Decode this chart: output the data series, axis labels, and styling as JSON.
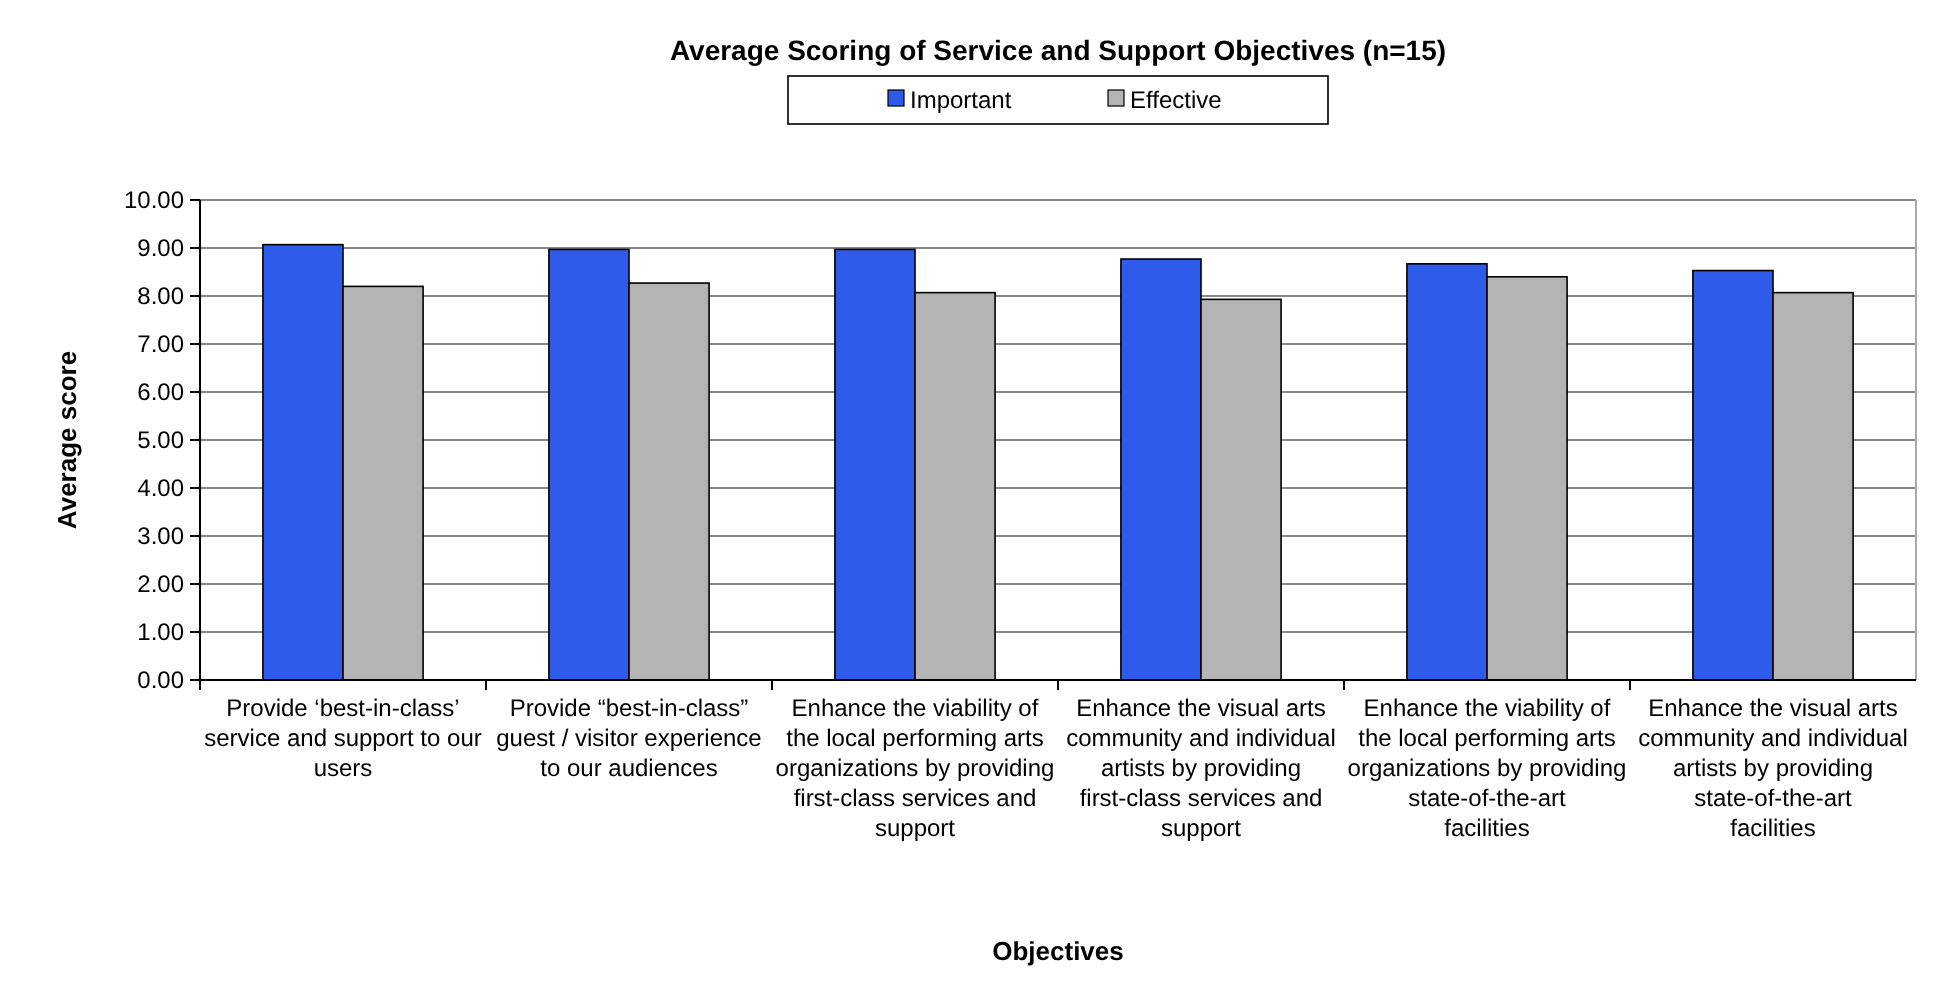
{
  "chart_data": {
    "type": "bar",
    "title": "Average Scoring of Service and Support Objectives (n=15)",
    "xlabel": "Objectives",
    "ylabel": "Average score",
    "categories": [
      "Provide ‘best-in-class’ service and support to our users",
      "Provide “best-in-class” guest / visitor experience to our audiences",
      "Enhance the viability of the local performing arts organizations by providing first-class services and support",
      "Enhance the visual arts community and individual artists by providing first-class services and support",
      "Enhance the viability of the local performing arts organizations by providing state-of-the-art facilities",
      "Enhance the visual arts community and individual artists by providing state-of-the-art facilities"
    ],
    "series": [
      {
        "name": "Important",
        "color": "#2f5bea",
        "values": [
          9.07,
          8.97,
          8.97,
          8.77,
          8.67,
          8.53
        ]
      },
      {
        "name": "Effective",
        "color": "#b4b4b4",
        "values": [
          8.2,
          8.27,
          8.07,
          7.93,
          8.4,
          8.07
        ]
      }
    ],
    "ylim": [
      0,
      10
    ],
    "yticks": [
      {
        "value": 0,
        "label": "0.00"
      },
      {
        "value": 1,
        "label": "1.00"
      },
      {
        "value": 2,
        "label": "2.00"
      },
      {
        "value": 3,
        "label": "3.00"
      },
      {
        "value": 4,
        "label": "4.00"
      },
      {
        "value": 5,
        "label": "5.00"
      },
      {
        "value": 6,
        "label": "6.00"
      },
      {
        "value": 7,
        "label": "7.00"
      },
      {
        "value": 8,
        "label": "8.00"
      },
      {
        "value": 9,
        "label": "9.00"
      },
      {
        "value": 10,
        "label": "10.00"
      }
    ],
    "grid": "y",
    "legend": "top"
  }
}
